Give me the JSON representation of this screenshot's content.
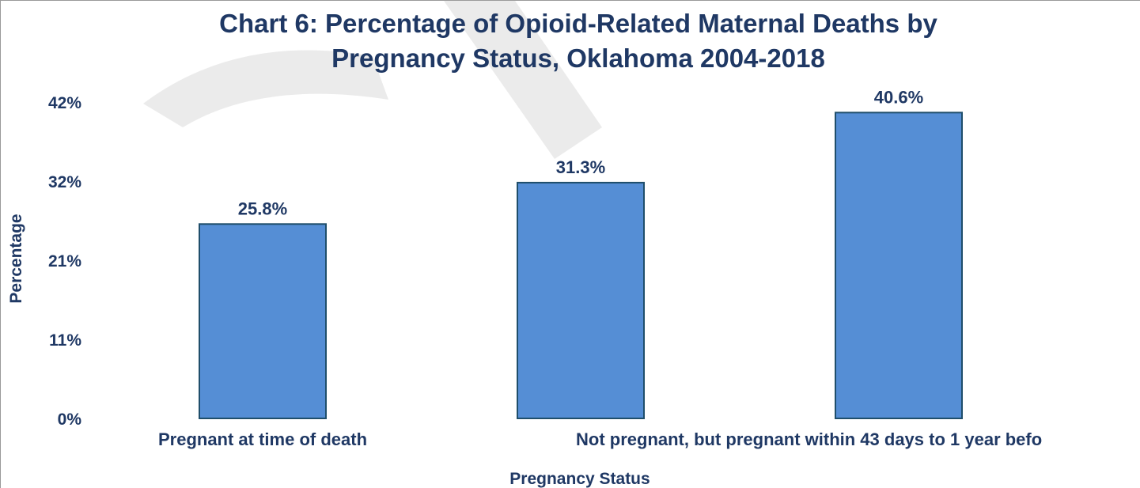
{
  "chart_data": {
    "type": "bar",
    "title_lines": [
      "Chart 6: Percentage of Opioid-Related Maternal Deaths by",
      "Pregnancy Status, Oklahoma 2004-2018"
    ],
    "categories": [
      "Pregnant at time of death",
      "",
      "Not pregnant, but pregnant within 43 days to 1 year befo"
    ],
    "values": [
      25.8,
      31.3,
      40.6
    ],
    "value_labels": [
      "25.8%",
      "31.3%",
      "40.6%"
    ],
    "xlabel": "Pregnancy Status",
    "ylabel": "Percentage",
    "ylim": [
      0,
      42
    ],
    "y_ticks": [
      {
        "value": 0,
        "label": "0%"
      },
      {
        "value": 10.5,
        "label": "11%"
      },
      {
        "value": 21,
        "label": "21%"
      },
      {
        "value": 31.5,
        "label": "32%"
      },
      {
        "value": 42,
        "label": "42%"
      }
    ],
    "grid": false,
    "colors": {
      "bar_fill": "#558ed5",
      "bar_stroke": "#1f4e6b",
      "text": "#1f3864"
    }
  }
}
